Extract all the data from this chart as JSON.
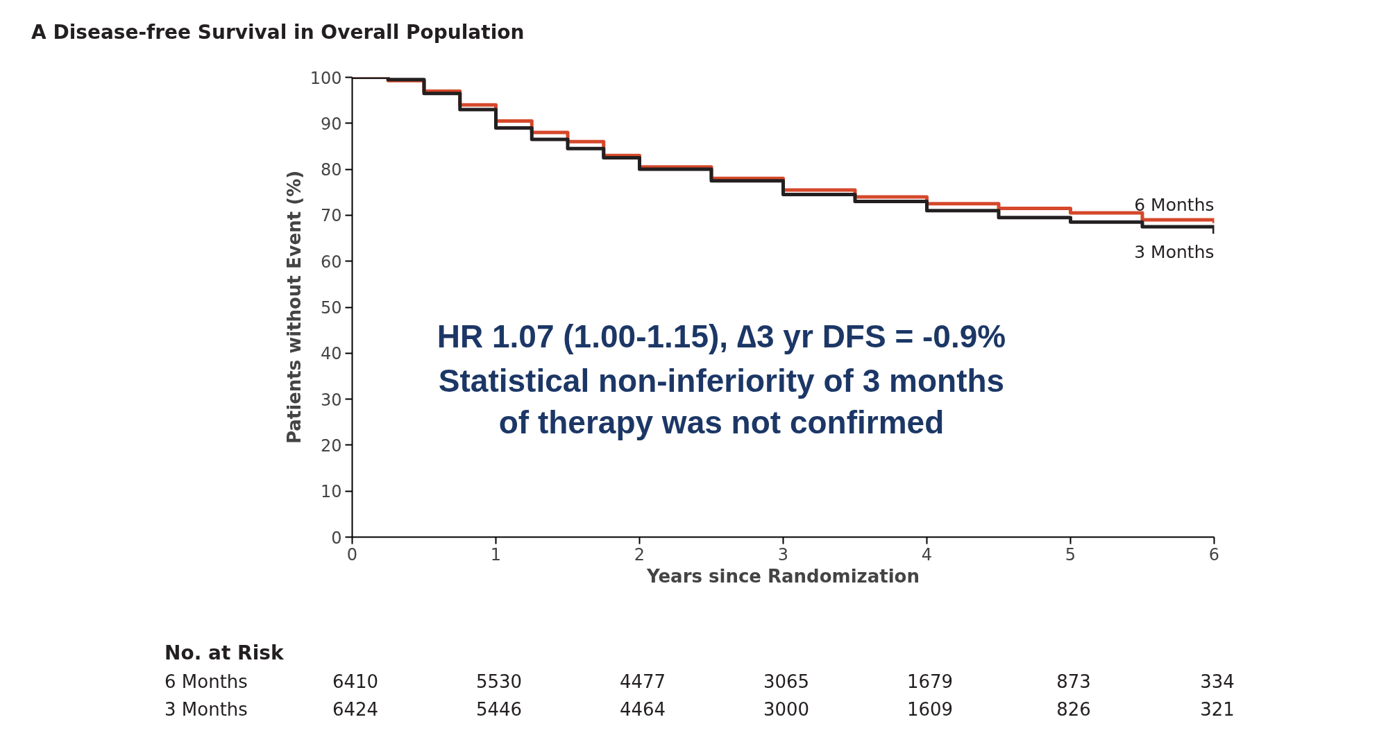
{
  "chart_data": {
    "type": "step",
    "title": "A  Disease-free Survival in Overall Population",
    "xlabel": "Years since Randomization",
    "ylabel": "Patients without Event (%)",
    "x": [
      0,
      0.25,
      0.5,
      0.75,
      1,
      1.25,
      1.5,
      1.75,
      2,
      2.5,
      3,
      3.5,
      4,
      4.5,
      5,
      5.5,
      6
    ],
    "series": [
      {
        "name": "6 Months",
        "color": "#d5482b",
        "values": [
          100,
          99.3,
          97,
          94,
          90.5,
          88,
          86,
          83,
          80.5,
          78,
          75.5,
          74,
          72.5,
          71.5,
          70.5,
          69,
          68.3
        ]
      },
      {
        "name": "3 Months",
        "color": "#231f20",
        "values": [
          100,
          99.5,
          96.5,
          93,
          89,
          86.5,
          84.5,
          82.5,
          80,
          77.5,
          74.5,
          73,
          71,
          69.5,
          68.5,
          67.5,
          66
        ]
      }
    ],
    "xlim": [
      0,
      6
    ],
    "xticks": [
      0,
      1,
      2,
      3,
      4,
      5,
      6
    ],
    "ylim": [
      0,
      100
    ],
    "yticks": [
      0,
      10,
      20,
      30,
      40,
      50,
      60,
      70,
      80,
      90,
      100
    ],
    "grid": false,
    "annotations": [
      "HR 1.07 (1.00-1.15), ∆3 yr DFS = -0.9%",
      "Statistical non-inferiority of 3 months",
      "of therapy was not confirmed",
      "No. at Risk",
      "6 Months",
      "6410",
      "5530",
      "4477",
      "3065",
      "1679",
      "873",
      "334",
      "3 Months",
      "6424",
      "5446",
      "4464",
      "3000",
      "1609",
      "826",
      "321"
    ]
  }
}
